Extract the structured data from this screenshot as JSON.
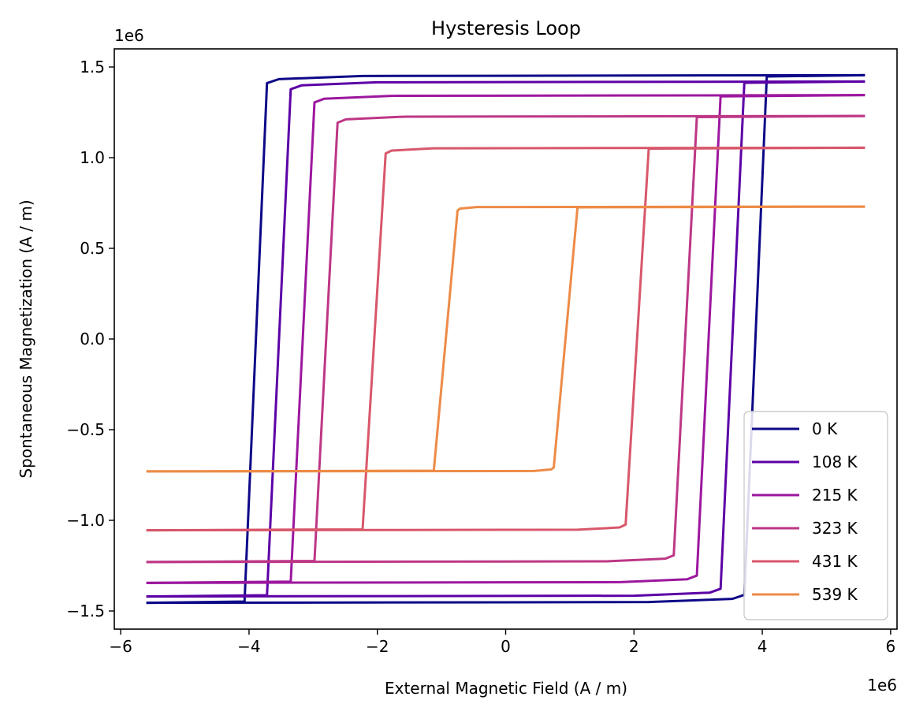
{
  "chart_data": {
    "type": "line",
    "title": "Hysteresis Loop",
    "xlabel": "External Magnetic Field (A / m)",
    "ylabel": "Spontaneous Magnetization (A / m)",
    "x_offset_label": "1e6",
    "y_offset_label": "1e6",
    "xlim": [
      -6.1,
      6.1
    ],
    "ylim": [
      -1.6,
      1.6
    ],
    "x_ticks": [
      -6,
      -4,
      -2,
      0,
      2,
      4,
      6
    ],
    "y_ticks": [
      -1.5,
      -1.0,
      -0.5,
      0.0,
      0.5,
      1.0,
      1.5
    ],
    "x_tick_labels": [
      "−6",
      "−4",
      "−2",
      "0",
      "2",
      "4",
      "6"
    ],
    "y_tick_labels": [
      "−1.5",
      "−1.0",
      "−0.5",
      "0.0",
      "0.5",
      "1.0",
      "1.5"
    ],
    "grid": false,
    "legend_position": "lower-right",
    "x_range_data": [
      -5.6,
      5.6
    ],
    "series": [
      {
        "name": "0 K",
        "color": "#0d0887",
        "ms": 1.455,
        "hc": 4.07,
        "hc_inner": 3.72
      },
      {
        "name": "108 K",
        "color": "#5c01a6",
        "ms": 1.42,
        "hc": 3.72,
        "hc_inner": 3.35
      },
      {
        "name": "215 K",
        "color": "#9c179e",
        "ms": 1.345,
        "hc": 3.35,
        "hc_inner": 2.98
      },
      {
        "name": "323 K",
        "color": "#bd3786",
        "ms": 1.23,
        "hc": 2.98,
        "hc_inner": 2.62
      },
      {
        "name": "431 K",
        "color": "#d8576b",
        "ms": 1.055,
        "hc": 2.23,
        "hc_inner": 1.87
      },
      {
        "name": "539 K",
        "color": "#ed8b47",
        "ms": 0.73,
        "hc": 1.12,
        "hc_inner": 0.75
      }
    ]
  }
}
